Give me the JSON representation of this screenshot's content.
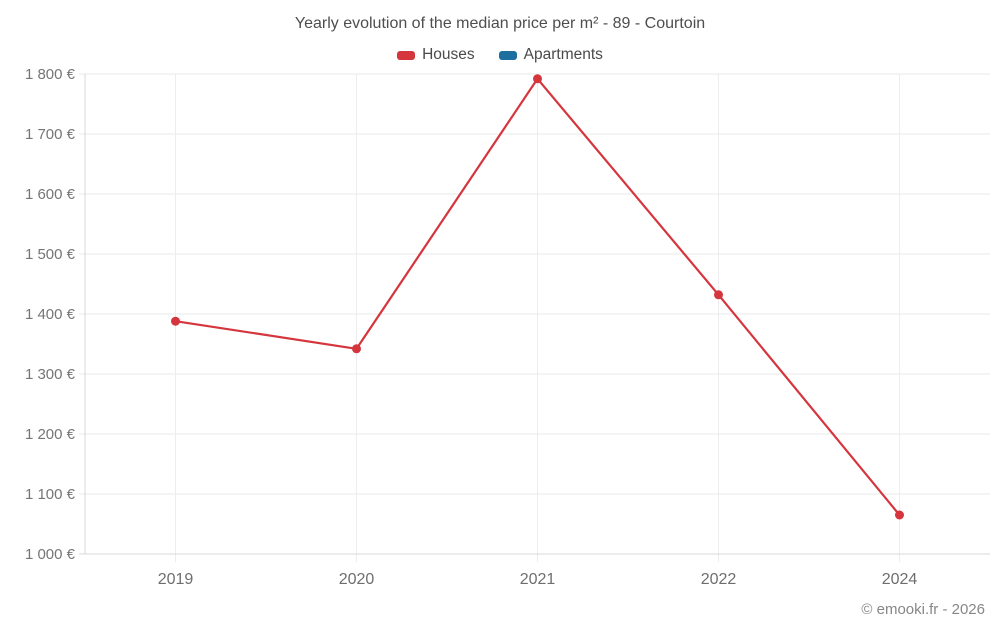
{
  "chart_data": {
    "type": "line",
    "title": "Yearly evolution of the median price per m² - 89 - Courtoin",
    "categories": [
      "2019",
      "2020",
      "2021",
      "2022",
      "2024"
    ],
    "series": [
      {
        "name": "Houses",
        "color": "#d5353c",
        "values": [
          1388,
          1342,
          1792,
          1432,
          1065
        ]
      },
      {
        "name": "Apartments",
        "color": "#1c6f9f",
        "values": []
      }
    ],
    "xlabel": "",
    "ylabel": "",
    "ylim": [
      1000,
      1800
    ],
    "ytick_step": 100,
    "ytick_labels": [
      "1 000 €",
      "1 100 €",
      "1 200 €",
      "1 300 €",
      "1 400 €",
      "1 500 €",
      "1 600 €",
      "1 700 €",
      "1 800 €"
    ],
    "grid": true,
    "legend_position": "top"
  },
  "footer": "© emooki.fr - 2026",
  "colors": {
    "grid_horizontal": "#e8e8e8",
    "grid_vertical": "#ededed",
    "axis_line": "#d9d9d9",
    "axis_text": "#757575",
    "xaxis_text": "#6e6e6e",
    "title_text": "#4e4e4e",
    "legend_text": "#4a4a4a",
    "footer_text": "#878787"
  }
}
